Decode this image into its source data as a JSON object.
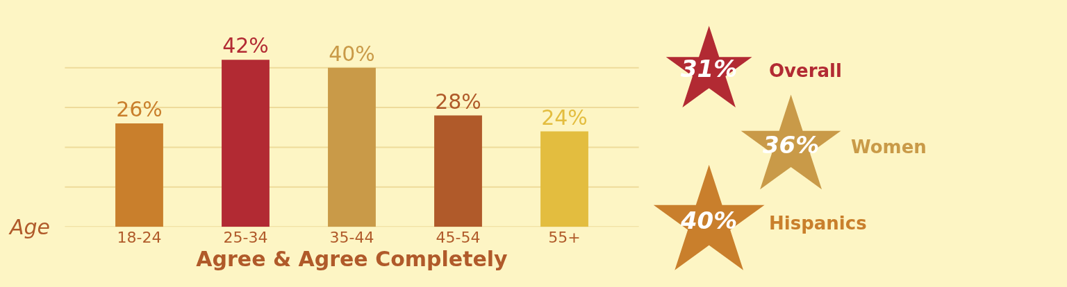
{
  "chart_data": [
    {
      "type": "bar",
      "xlabel": "Agree & Agree Completely",
      "annotations": [
        "Age"
      ],
      "categories": [
        "18-24",
        "25-34",
        "35-44",
        "45-54",
        "55+"
      ],
      "values": [
        26,
        42,
        40,
        28,
        24
      ],
      "value_labels": [
        "26%",
        "42%",
        "40%",
        "28%",
        "24%"
      ],
      "colors": [
        "#c97f2c",
        "#b22a33",
        "#c99a48",
        "#b05a2a",
        "#e3bd3f"
      ],
      "ref_lines": [
        {
          "axis": "y",
          "value": 0,
          "color": "#eedb9a"
        },
        {
          "axis": "y",
          "value": 10,
          "color": "#eedb9a"
        },
        {
          "axis": "y",
          "value": 20,
          "color": "#eedb9a"
        },
        {
          "axis": "y",
          "value": 30,
          "color": "#eedb9a"
        },
        {
          "axis": "y",
          "value": 40,
          "color": "#eedb9a"
        }
      ],
      "tick_labels": "x"
    },
    {
      "type": "other",
      "categories": [
        "Overall",
        "Women",
        "Hispanics"
      ],
      "values": [
        31,
        36,
        40
      ],
      "value_labels": [
        "31%",
        "36%",
        "40%"
      ],
      "colors": [
        "#b22a33",
        "#c99a48",
        "#c97f2c"
      ]
    }
  ]
}
